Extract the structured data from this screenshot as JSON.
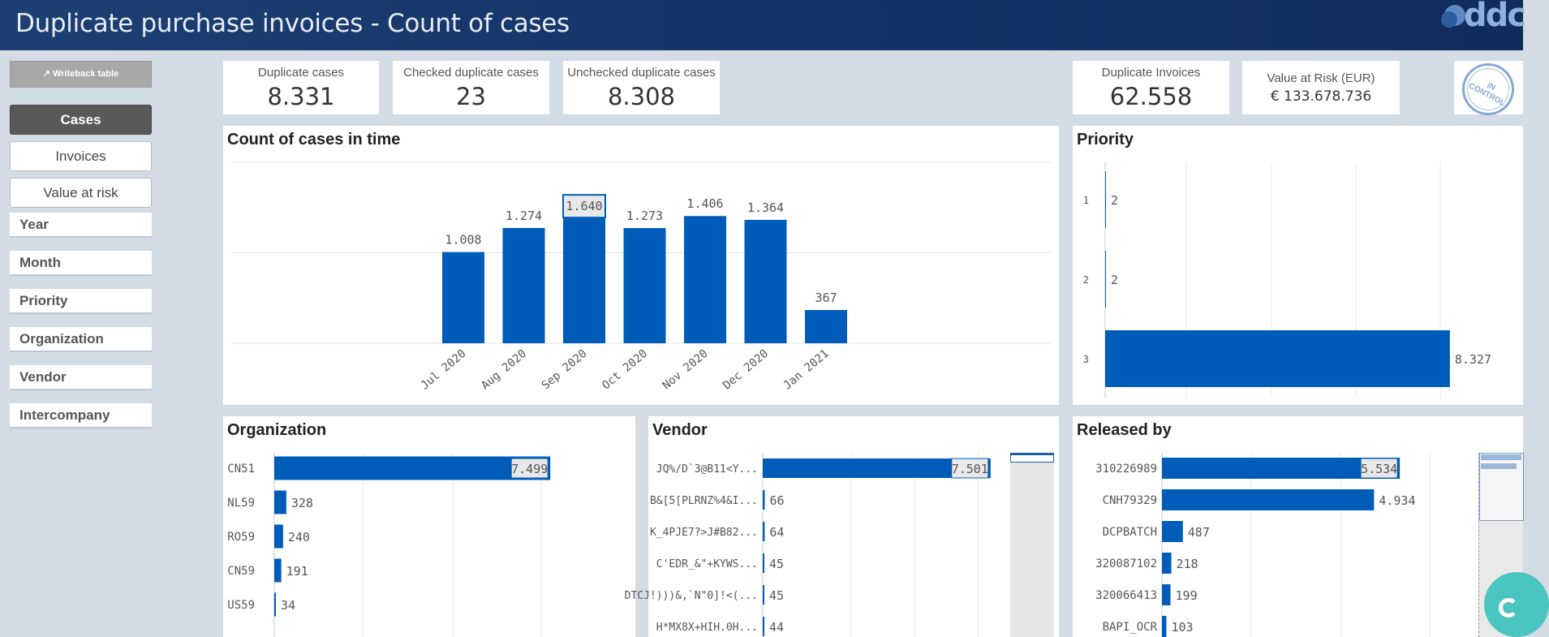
{
  "header": {
    "title": "Duplicate purchase invoices - Count of cases",
    "logo_text": "ddc"
  },
  "sidebar": {
    "writeback_label": "↗ Writeback table",
    "nav": [
      {
        "label": "Cases",
        "active": true
      },
      {
        "label": "Invoices",
        "active": false
      },
      {
        "label": "Value at risk",
        "active": false
      }
    ],
    "filters": [
      "Year",
      "Month",
      "Priority",
      "Organization",
      "Vendor",
      "Intercompany"
    ]
  },
  "kpis": [
    {
      "label": "Duplicate cases",
      "value": "8.331"
    },
    {
      "label": "Checked duplicate cases",
      "value": "23"
    },
    {
      "label": "Unchecked duplicate cases",
      "value": "8.308"
    },
    {
      "label": "Duplicate Invoices",
      "value": "62.558"
    },
    {
      "label": "Value at Risk (EUR)",
      "value": "€ 133.678.736"
    }
  ],
  "stamp_text": "IN CONTROL",
  "colors": {
    "bar": "#005cb9",
    "header": "#143468",
    "background": "#d3dbe5"
  },
  "chart_data": [
    {
      "type": "bar",
      "title": "Count of cases in time",
      "categories": [
        "Jul 2020",
        "Aug 2020",
        "Sep 2020",
        "Oct 2020",
        "Nov 2020",
        "Dec 2020",
        "Jan 2021"
      ],
      "values": [
        1008,
        1274,
        1640,
        1273,
        1406,
        1364,
        367
      ],
      "value_labels": [
        "1.008",
        "1.274",
        "1.640",
        "1.273",
        "1.406",
        "1.364",
        "367"
      ],
      "highlight_index": 2,
      "ylim": [
        0,
        2000
      ]
    },
    {
      "type": "bar",
      "orientation": "horizontal",
      "title": "Priority",
      "categories": [
        "1",
        "2",
        "3"
      ],
      "values": [
        2,
        2,
        8327
      ],
      "value_labels": [
        "2",
        "2",
        "8.327"
      ],
      "xlim": [
        0,
        8800
      ]
    },
    {
      "type": "bar",
      "orientation": "horizontal",
      "title": "Organization",
      "categories": [
        "CN51",
        "NL59",
        "RO59",
        "CN59",
        "US59"
      ],
      "values": [
        7499,
        328,
        240,
        191,
        34
      ],
      "value_labels": [
        "7.499",
        "328",
        "240",
        "191",
        "34"
      ],
      "highlight_index": 0,
      "xlim": [
        0,
        8200
      ]
    },
    {
      "type": "bar",
      "orientation": "horizontal",
      "title": "Vendor",
      "categories": [
        "JQ%/D`3@B11<Y...",
        "B&[5[PLRNZ%4&I...",
        "K_4PJE7?>J#B82...",
        "C'EDR_&\"+KYWS...",
        "DTCJ!)))&,`N\"0]!<(...",
        "H*MX8X+HIH.0H..."
      ],
      "values": [
        7501,
        66,
        64,
        45,
        45,
        44
      ],
      "value_labels": [
        "7.501",
        "66",
        "64",
        "45",
        "45",
        "44"
      ],
      "highlight_index": 0,
      "xlim": [
        0,
        7800
      ]
    },
    {
      "type": "bar",
      "orientation": "horizontal",
      "title": "Released by",
      "categories": [
        "310226989",
        "CNH79329",
        "DCPBATCH",
        "320087102",
        "320066413",
        "BAPI_OCR"
      ],
      "values": [
        5534,
        4934,
        487,
        218,
        199,
        103
      ],
      "value_labels": [
        "5.534",
        "4.934",
        "487",
        "218",
        "199",
        "103"
      ],
      "highlight_index": 0,
      "xlim": [
        0,
        6400
      ]
    }
  ]
}
